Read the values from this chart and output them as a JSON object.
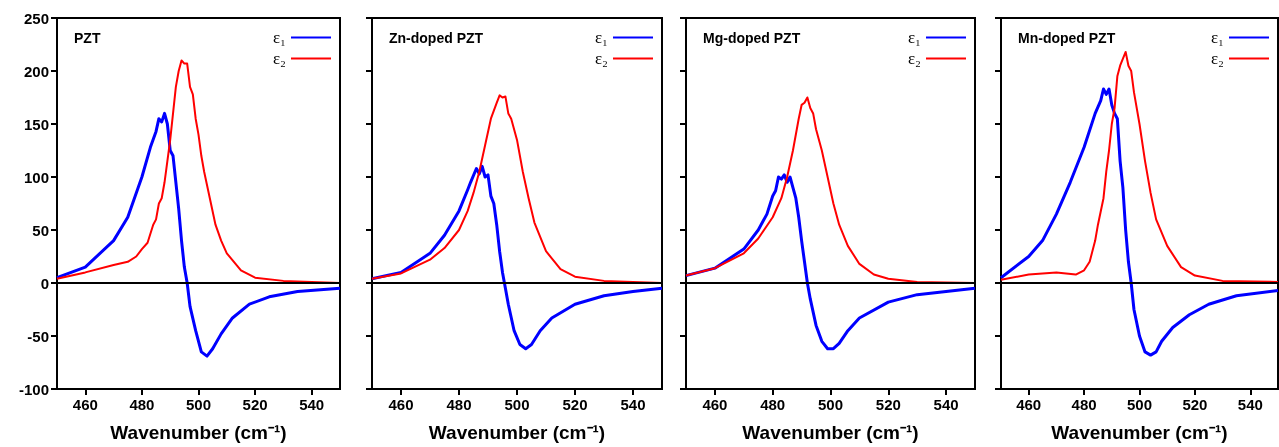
{
  "chart_data": [
    {
      "type": "line",
      "title": "PZT",
      "xlabel": "Wavenumber (cm⁻¹)",
      "xlim": [
        450,
        550
      ],
      "xticks": [
        460,
        480,
        500,
        520,
        540
      ],
      "ylim": [
        -100,
        250
      ],
      "yticks": [
        -100,
        -50,
        0,
        50,
        100,
        150,
        200,
        250
      ],
      "legend": "top right",
      "marker": "none",
      "ref_lines": [
        {
          "axis": "y",
          "value": 0,
          "color": "#000000"
        }
      ],
      "series": [
        {
          "name": "ε₁",
          "color": "#0000ff",
          "x": [
            450,
            460,
            470,
            475,
            480,
            483,
            485,
            486,
            487,
            488,
            489,
            490,
            491,
            492,
            493,
            494,
            495,
            496,
            497,
            499,
            501,
            503,
            505,
            508,
            512,
            518,
            525,
            535,
            550
          ],
          "values": [
            5,
            15,
            40,
            62,
            100,
            128,
            143,
            155,
            152,
            160,
            150,
            125,
            120,
            95,
            70,
            40,
            15,
            0,
            -22,
            -45,
            -65,
            -69,
            -62,
            -48,
            -33,
            -20,
            -13,
            -8,
            -5
          ]
        },
        {
          "name": "ε₂",
          "color": "#ff0000",
          "x": [
            450,
            460,
            470,
            475,
            478,
            480,
            482,
            484,
            485,
            486,
            487,
            488,
            489,
            490,
            491,
            492,
            493,
            494,
            495,
            496,
            497,
            498,
            499,
            500,
            501,
            502,
            504,
            506,
            508,
            510,
            515,
            520,
            530,
            550
          ],
          "values": [
            4,
            10,
            17,
            20,
            25,
            32,
            38,
            55,
            60,
            75,
            80,
            95,
            115,
            135,
            160,
            185,
            200,
            210,
            207,
            207,
            185,
            178,
            155,
            140,
            120,
            105,
            80,
            55,
            40,
            28,
            12,
            5,
            2,
            0
          ]
        }
      ]
    },
    {
      "type": "line",
      "title": "Zn-doped PZT",
      "xlabel": "Wavenumber (cm⁻¹)",
      "xlim": [
        450,
        550
      ],
      "xticks": [
        460,
        480,
        500,
        520,
        540
      ],
      "ylim": [
        -100,
        250
      ],
      "yticks": [
        -100,
        -50,
        0,
        50,
        100,
        150,
        200,
        250
      ],
      "tick_labels": "x",
      "legend": "top right",
      "marker": "none",
      "ref_lines": [
        {
          "axis": "y",
          "value": 0,
          "color": "#000000"
        }
      ],
      "series": [
        {
          "name": "ε₁",
          "color": "#0000ff",
          "x": [
            450,
            460,
            470,
            475,
            480,
            483,
            484,
            486,
            487,
            488,
            489,
            490,
            491,
            492,
            493,
            494,
            495,
            496,
            497,
            499,
            501,
            503,
            505,
            508,
            512,
            520,
            530,
            540,
            550
          ],
          "values": [
            4,
            10,
            28,
            45,
            68,
            88,
            95,
            108,
            103,
            110,
            100,
            102,
            82,
            75,
            55,
            30,
            10,
            -5,
            -20,
            -45,
            -58,
            -62,
            -58,
            -45,
            -33,
            -20,
            -12,
            -8,
            -5
          ]
        },
        {
          "name": "ε₂",
          "color": "#ff0000",
          "x": [
            450,
            460,
            470,
            475,
            480,
            483,
            485,
            487,
            489,
            491,
            493,
            494,
            495,
            496,
            497,
            498,
            500,
            502,
            504,
            506,
            510,
            515,
            520,
            530,
            550
          ],
          "values": [
            4,
            9,
            22,
            33,
            50,
            68,
            85,
            105,
            130,
            155,
            170,
            177,
            175,
            176,
            160,
            155,
            135,
            105,
            80,
            57,
            30,
            13,
            6,
            2,
            0
          ]
        }
      ]
    },
    {
      "type": "line",
      "title": "Mg-doped PZT",
      "xlabel": "Wavenumber (cm⁻¹)",
      "xlim": [
        450,
        550
      ],
      "xticks": [
        460,
        480,
        500,
        520,
        540
      ],
      "ylim": [
        -100,
        250
      ],
      "yticks": [
        -100,
        -50,
        0,
        50,
        100,
        150,
        200,
        250
      ],
      "tick_labels": "x",
      "legend": "top right",
      "marker": "none",
      "ref_lines": [
        {
          "axis": "y",
          "value": 0,
          "color": "#000000"
        }
      ],
      "series": [
        {
          "name": "ε₁",
          "color": "#0000ff",
          "x": [
            450,
            460,
            470,
            475,
            478,
            480,
            481,
            482,
            483,
            484,
            485,
            486,
            487,
            488,
            489,
            490,
            491,
            492,
            493,
            495,
            497,
            499,
            501,
            503,
            506,
            510,
            520,
            530,
            540,
            550
          ],
          "values": [
            7,
            14,
            32,
            50,
            65,
            82,
            87,
            100,
            98,
            102,
            95,
            100,
            90,
            80,
            62,
            40,
            20,
            0,
            -15,
            -40,
            -55,
            -62,
            -62,
            -57,
            -45,
            -33,
            -18,
            -11,
            -8,
            -5
          ]
        },
        {
          "name": "ε₂",
          "color": "#ff0000",
          "x": [
            450,
            460,
            470,
            475,
            480,
            483,
            485,
            487,
            489,
            490,
            491,
            492,
            493,
            494,
            495,
            497,
            499,
            501,
            503,
            506,
            510,
            515,
            520,
            530,
            550
          ],
          "values": [
            7,
            14,
            28,
            42,
            62,
            80,
            100,
            125,
            155,
            168,
            170,
            175,
            165,
            160,
            145,
            125,
            100,
            75,
            55,
            35,
            18,
            8,
            4,
            1,
            0
          ]
        }
      ]
    },
    {
      "type": "line",
      "title": "Mn-doped PZT",
      "xlabel": "Wavenumber (cm⁻¹)",
      "xlim": [
        450,
        550
      ],
      "xticks": [
        460,
        480,
        500,
        520,
        540
      ],
      "ylim": [
        -100,
        250
      ],
      "yticks": [
        -100,
        -50,
        0,
        50,
        100,
        150,
        200,
        250
      ],
      "tick_labels": "x",
      "legend": "top right",
      "marker": "none",
      "ref_lines": [
        {
          "axis": "y",
          "value": 0,
          "color": "#000000"
        }
      ],
      "series": [
        {
          "name": "ε₁",
          "color": "#0000ff",
          "x": [
            450,
            460,
            465,
            470,
            475,
            480,
            484,
            486,
            487,
            488,
            489,
            490,
            491,
            492,
            493,
            494,
            495,
            496,
            497,
            498,
            500,
            502,
            504,
            506,
            508,
            512,
            518,
            525,
            535,
            550
          ],
          "values": [
            5,
            25,
            40,
            65,
            95,
            128,
            160,
            172,
            183,
            178,
            183,
            168,
            160,
            155,
            115,
            90,
            50,
            20,
            0,
            -25,
            -50,
            -65,
            -68,
            -65,
            -55,
            -42,
            -30,
            -20,
            -12,
            -7
          ]
        },
        {
          "name": "ε₂",
          "color": "#ff0000",
          "x": [
            450,
            460,
            470,
            477,
            480,
            482,
            484,
            485,
            487,
            488,
            489,
            490,
            491,
            492,
            493,
            495,
            496,
            497,
            498,
            500,
            502,
            504,
            506,
            510,
            515,
            520,
            530,
            550
          ],
          "values": [
            3,
            8,
            10,
            8,
            12,
            20,
            40,
            55,
            80,
            105,
            125,
            150,
            165,
            195,
            205,
            218,
            205,
            200,
            180,
            150,
            115,
            85,
            60,
            35,
            15,
            7,
            2,
            1
          ]
        }
      ]
    }
  ]
}
